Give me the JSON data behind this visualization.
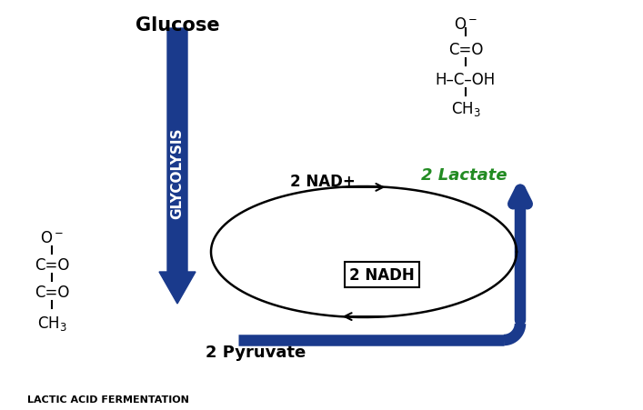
{
  "title": "LACTIC ACID FERMENTATION",
  "background_color": "#ffffff",
  "blue_color": "#1a3a8c",
  "green_color": "#228B22",
  "black_color": "#000000",
  "glucose_label": "Glucose",
  "glycolysis_label": "GLYCOLYSIS",
  "pyruvate_label": "2 Pyruvate",
  "lactate_label": "2 Lactate",
  "nad_label": "2 NAD+",
  "nadh_label": "2 NADH",
  "figsize": [
    7.07,
    4.52
  ],
  "dpi": 100
}
